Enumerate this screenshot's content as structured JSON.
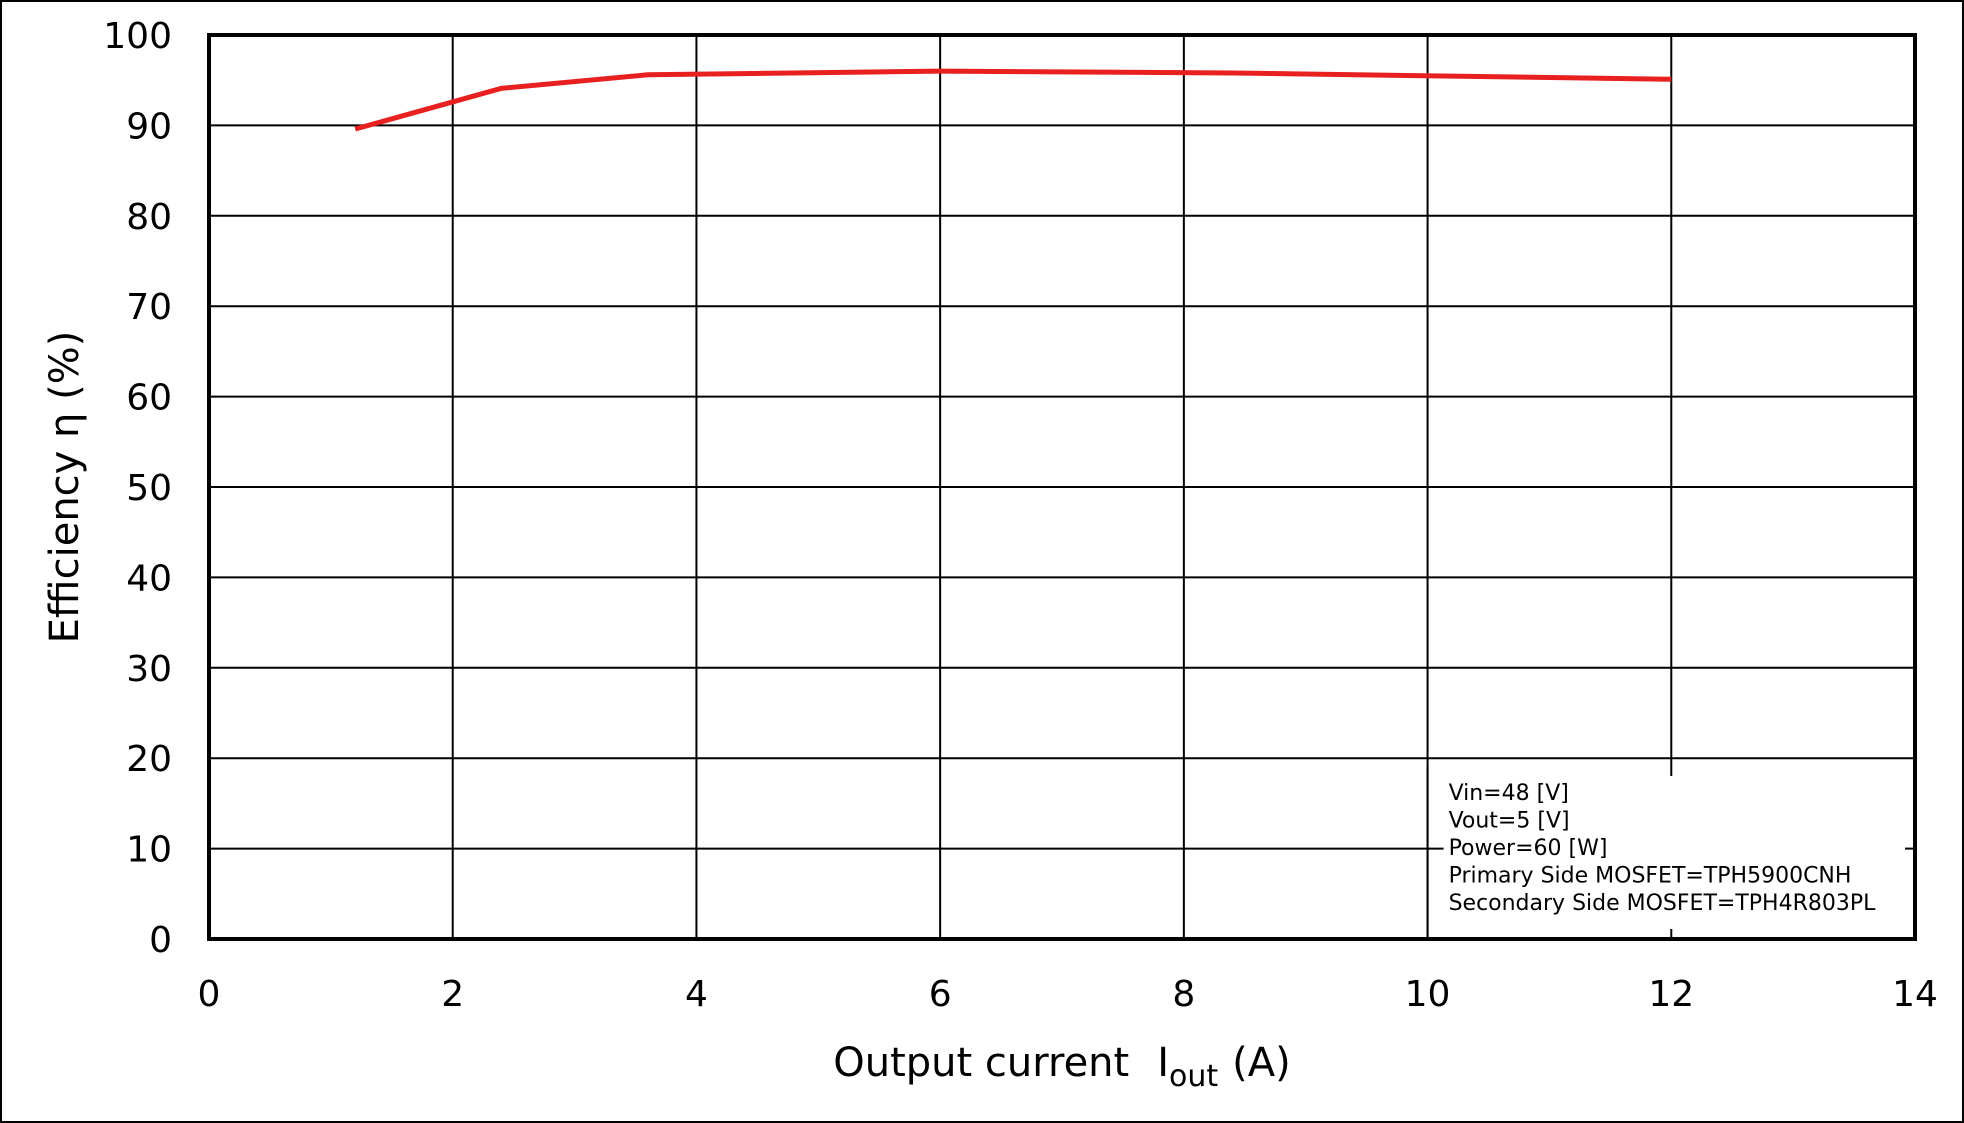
{
  "chart_data": {
    "type": "line",
    "title": "",
    "xlabel": "Output current",
    "xlabel_symbol": "I",
    "xlabel_subscript": "out",
    "xlabel_unit": "(A)",
    "ylabel": "Efficiency  η (%)",
    "xlim": [
      0,
      14
    ],
    "ylim": [
      0,
      100
    ],
    "xticks": [
      0,
      2,
      4,
      6,
      8,
      10,
      12,
      14
    ],
    "yticks": [
      0,
      10,
      20,
      30,
      40,
      50,
      60,
      70,
      80,
      90,
      100
    ],
    "grid": true,
    "series": [
      {
        "color": "#e82020",
        "x": [
          1.2,
          2.4,
          3.6,
          6.0,
          8.4,
          12.0
        ],
        "y": [
          89.6,
          94.1,
          95.6,
          96.0,
          95.8,
          95.1
        ]
      }
    ],
    "annotation": [
      "Vin=48 [V]",
      "Vout=5 [V]",
      "Power=60 [W]",
      "Primary Side MOSFET=TPH5900CNH",
      "Secondary Side MOSFET=TPH4R803PL"
    ],
    "annotation_position": "bottom-right"
  }
}
